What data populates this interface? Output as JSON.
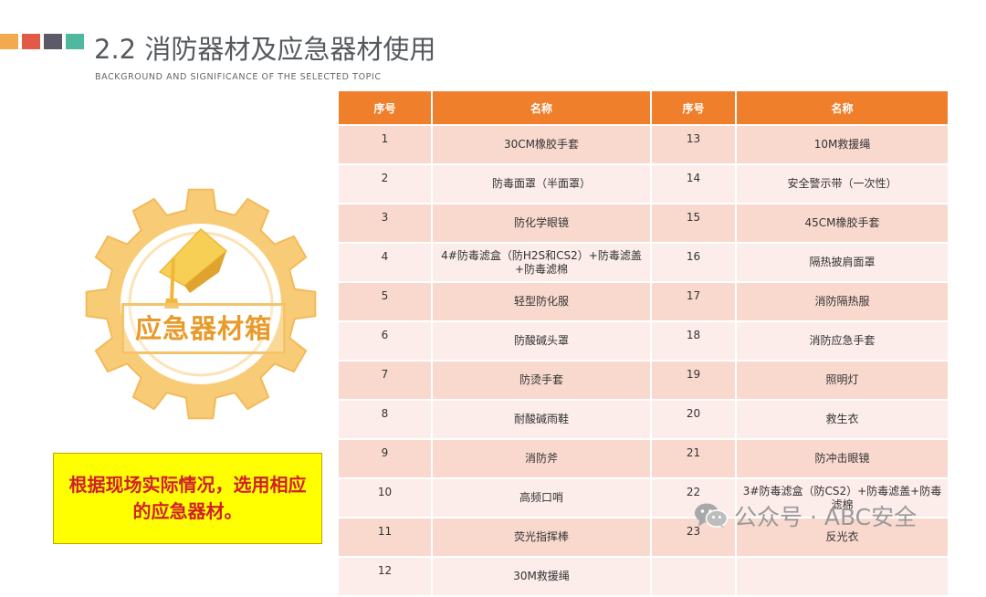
{
  "header": {
    "title": "2.2 消防器材及应急器材使用",
    "subtitle": "BACKGROUND AND SIGNIFICANCE OF THE SELECTED TOPIC",
    "accent_colors": [
      "#f2a94f",
      "#e05a45",
      "#5d5a68",
      "#4fb89e"
    ]
  },
  "badge": {
    "label": "应急器材箱",
    "icon": "graduation-cap-icon",
    "gear_color": "#f5c36a"
  },
  "note": {
    "text": "根据现场实际情况，选用相应的应急器材。"
  },
  "table": {
    "headers": [
      "序号",
      "名称",
      "序号",
      "名称"
    ],
    "header_color": "#f07f2c",
    "rows": [
      [
        "1",
        "30CM橡胶手套",
        "13",
        "10M救援绳"
      ],
      [
        "2",
        "防毒面罩（半面罩）",
        "14",
        "安全警示带（一次性）"
      ],
      [
        "3",
        "防化学眼镜",
        "15",
        "45CM橡胶手套"
      ],
      [
        "4",
        "4#防毒滤盒（防H2S和CS2）+防毒滤盖+防毒滤棉",
        "16",
        "隔热披肩面罩"
      ],
      [
        "5",
        "轻型防化服",
        "17",
        "消防隔热服"
      ],
      [
        "6",
        "防酸碱头罩",
        "18",
        "消防应急手套"
      ],
      [
        "7",
        "防烫手套",
        "19",
        "照明灯"
      ],
      [
        "8",
        "耐酸碱雨鞋",
        "20",
        "救生衣"
      ],
      [
        "9",
        "消防斧",
        "21",
        "防冲击眼镜"
      ],
      [
        "10",
        "高频口哨",
        "22",
        "3#防毒滤盒（防CS2）+防毒滤盖+防毒滤棉"
      ],
      [
        "11",
        "荧光指挥棒",
        "23",
        "反光衣"
      ],
      [
        "12",
        "30M救援绳",
        "",
        ""
      ]
    ]
  },
  "watermark": {
    "text": "公众号 · ABC安全",
    "icon": "wechat-icon"
  }
}
